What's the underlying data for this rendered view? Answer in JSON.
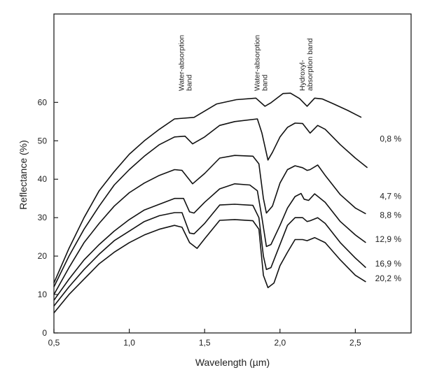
{
  "chart_data": {
    "type": "line",
    "title": "",
    "xlabel": "Wavelength (µm)",
    "ylabel": "Reflectance (%)",
    "xlim": [
      0.5,
      2.87
    ],
    "ylim": [
      0,
      83
    ],
    "xticks": [
      0.5,
      1.0,
      1.5,
      2.0,
      2.5
    ],
    "xtick_labels": [
      "0,5",
      "1,0",
      "1,5",
      "2,0",
      "2,5"
    ],
    "yticks": [
      0,
      10,
      20,
      30,
      40,
      50,
      60
    ],
    "ytick_labels": [
      "0",
      "10",
      "20",
      "30",
      "40",
      "50",
      "60"
    ],
    "grid": false,
    "line_color": "#111111",
    "annotations": [
      {
        "x": 1.4,
        "lines": [
          "Water-absorption",
          "band"
        ]
      },
      {
        "x": 1.9,
        "lines": [
          "Water-absorption",
          "band"
        ]
      },
      {
        "x": 2.2,
        "lines": [
          "Hydroxyl-",
          "absorption band"
        ]
      }
    ],
    "series": [
      {
        "name": "0,8 %",
        "label_y": 50.5,
        "points": [
          [
            0.5,
            13
          ],
          [
            0.6,
            22
          ],
          [
            0.7,
            30
          ],
          [
            0.8,
            37
          ],
          [
            0.9,
            42
          ],
          [
            1.0,
            46.5
          ],
          [
            1.1,
            50
          ],
          [
            1.2,
            53
          ],
          [
            1.3,
            55.7
          ],
          [
            1.43,
            56.1
          ],
          [
            1.58,
            59.6
          ],
          [
            1.71,
            60.7
          ],
          [
            1.84,
            61.1
          ],
          [
            1.9,
            59
          ],
          [
            1.94,
            59.9
          ],
          [
            2.02,
            62.3
          ],
          [
            2.07,
            62.4
          ],
          [
            2.13,
            61
          ],
          [
            2.18,
            59
          ],
          [
            2.23,
            61.1
          ],
          [
            2.28,
            60.9
          ],
          [
            2.35,
            59.7
          ],
          [
            2.45,
            57.9
          ],
          [
            2.54,
            56.1
          ]
        ]
      },
      {
        "name": "4,7 %",
        "label_y": 35.6,
        "points": [
          [
            0.5,
            12
          ],
          [
            0.6,
            20
          ],
          [
            0.7,
            27
          ],
          [
            0.8,
            33
          ],
          [
            0.9,
            38.5
          ],
          [
            1.0,
            42.5
          ],
          [
            1.1,
            46
          ],
          [
            1.2,
            49
          ],
          [
            1.3,
            51
          ],
          [
            1.37,
            51.2
          ],
          [
            1.42,
            49.2
          ],
          [
            1.5,
            51
          ],
          [
            1.6,
            54
          ],
          [
            1.7,
            55
          ],
          [
            1.85,
            55.7
          ],
          [
            1.88,
            52
          ],
          [
            1.92,
            45
          ],
          [
            1.95,
            47
          ],
          [
            2.0,
            51
          ],
          [
            2.05,
            53.5
          ],
          [
            2.1,
            54.6
          ],
          [
            2.15,
            54.5
          ],
          [
            2.2,
            52
          ],
          [
            2.25,
            54
          ],
          [
            2.3,
            53
          ],
          [
            2.4,
            49
          ],
          [
            2.5,
            45.5
          ],
          [
            2.58,
            43
          ]
        ]
      },
      {
        "name": "8,8 %",
        "label_y": 30.7,
        "points": [
          [
            0.5,
            10
          ],
          [
            0.6,
            17
          ],
          [
            0.7,
            23.5
          ],
          [
            0.8,
            28.5
          ],
          [
            0.9,
            33
          ],
          [
            1.0,
            36.5
          ],
          [
            1.1,
            39
          ],
          [
            1.2,
            41
          ],
          [
            1.3,
            42.5
          ],
          [
            1.35,
            42.3
          ],
          [
            1.42,
            38.8
          ],
          [
            1.5,
            41.5
          ],
          [
            1.6,
            45.5
          ],
          [
            1.7,
            46.2
          ],
          [
            1.82,
            46
          ],
          [
            1.86,
            44
          ],
          [
            1.89,
            35
          ],
          [
            1.91,
            31.2
          ],
          [
            1.95,
            33
          ],
          [
            2.0,
            39
          ],
          [
            2.05,
            42.5
          ],
          [
            2.1,
            43.5
          ],
          [
            2.15,
            43
          ],
          [
            2.18,
            42.3
          ],
          [
            2.2,
            42.5
          ],
          [
            2.25,
            43.7
          ],
          [
            2.3,
            41
          ],
          [
            2.4,
            36
          ],
          [
            2.5,
            32.5
          ],
          [
            2.57,
            31
          ]
        ]
      },
      {
        "name": "12,9 %",
        "label_y": 24.4,
        "points": [
          [
            0.5,
            8.5
          ],
          [
            0.6,
            14
          ],
          [
            0.7,
            19
          ],
          [
            0.8,
            23
          ],
          [
            0.9,
            26.5
          ],
          [
            1.0,
            29.5
          ],
          [
            1.1,
            32
          ],
          [
            1.2,
            33.5
          ],
          [
            1.3,
            35
          ],
          [
            1.36,
            35
          ],
          [
            1.4,
            31.5
          ],
          [
            1.43,
            31.2
          ],
          [
            1.5,
            34
          ],
          [
            1.6,
            37.5
          ],
          [
            1.7,
            38.8
          ],
          [
            1.8,
            38.5
          ],
          [
            1.85,
            37
          ],
          [
            1.88,
            30
          ],
          [
            1.91,
            22.5
          ],
          [
            1.94,
            23
          ],
          [
            2.0,
            28
          ],
          [
            2.05,
            32.5
          ],
          [
            2.1,
            35.5
          ],
          [
            2.14,
            36.3
          ],
          [
            2.16,
            34.8
          ],
          [
            2.19,
            34.5
          ],
          [
            2.23,
            36.2
          ],
          [
            2.3,
            34
          ],
          [
            2.4,
            29
          ],
          [
            2.5,
            25.5
          ],
          [
            2.57,
            23.5
          ]
        ]
      },
      {
        "name": "16,9 %",
        "label_y": 18,
        "points": [
          [
            0.5,
            7
          ],
          [
            0.6,
            12
          ],
          [
            0.7,
            16.5
          ],
          [
            0.8,
            20.5
          ],
          [
            0.9,
            24
          ],
          [
            1.0,
            26.5
          ],
          [
            1.1,
            29
          ],
          [
            1.2,
            30.5
          ],
          [
            1.3,
            31.3
          ],
          [
            1.35,
            31.3
          ],
          [
            1.4,
            26
          ],
          [
            1.43,
            25.8
          ],
          [
            1.5,
            28.5
          ],
          [
            1.6,
            33.3
          ],
          [
            1.7,
            33.5
          ],
          [
            1.82,
            33.2
          ],
          [
            1.86,
            30
          ],
          [
            1.89,
            20
          ],
          [
            1.91,
            16.5
          ],
          [
            1.94,
            17
          ],
          [
            2.0,
            23
          ],
          [
            2.05,
            28
          ],
          [
            2.1,
            30
          ],
          [
            2.15,
            30
          ],
          [
            2.18,
            29
          ],
          [
            2.2,
            29.2
          ],
          [
            2.25,
            30
          ],
          [
            2.3,
            28.5
          ],
          [
            2.4,
            23.5
          ],
          [
            2.5,
            19.5
          ],
          [
            2.57,
            17
          ]
        ]
      },
      {
        "name": "20,2 %",
        "label_y": 14.2,
        "points": [
          [
            0.5,
            5.2
          ],
          [
            0.6,
            10
          ],
          [
            0.7,
            14
          ],
          [
            0.8,
            18
          ],
          [
            0.9,
            21
          ],
          [
            1.0,
            23.5
          ],
          [
            1.1,
            25.5
          ],
          [
            1.2,
            27
          ],
          [
            1.3,
            28
          ],
          [
            1.35,
            27.5
          ],
          [
            1.4,
            23.5
          ],
          [
            1.45,
            22
          ],
          [
            1.5,
            24.5
          ],
          [
            1.6,
            29.3
          ],
          [
            1.7,
            29.5
          ],
          [
            1.82,
            29.2
          ],
          [
            1.86,
            27
          ],
          [
            1.89,
            15
          ],
          [
            1.92,
            11.8
          ],
          [
            1.96,
            13
          ],
          [
            2.0,
            17.5
          ],
          [
            2.05,
            21
          ],
          [
            2.1,
            24.3
          ],
          [
            2.15,
            24.3
          ],
          [
            2.18,
            24
          ],
          [
            2.23,
            24.8
          ],
          [
            2.3,
            23.5
          ],
          [
            2.4,
            19
          ],
          [
            2.5,
            15
          ],
          [
            2.57,
            13.3
          ]
        ]
      }
    ]
  }
}
